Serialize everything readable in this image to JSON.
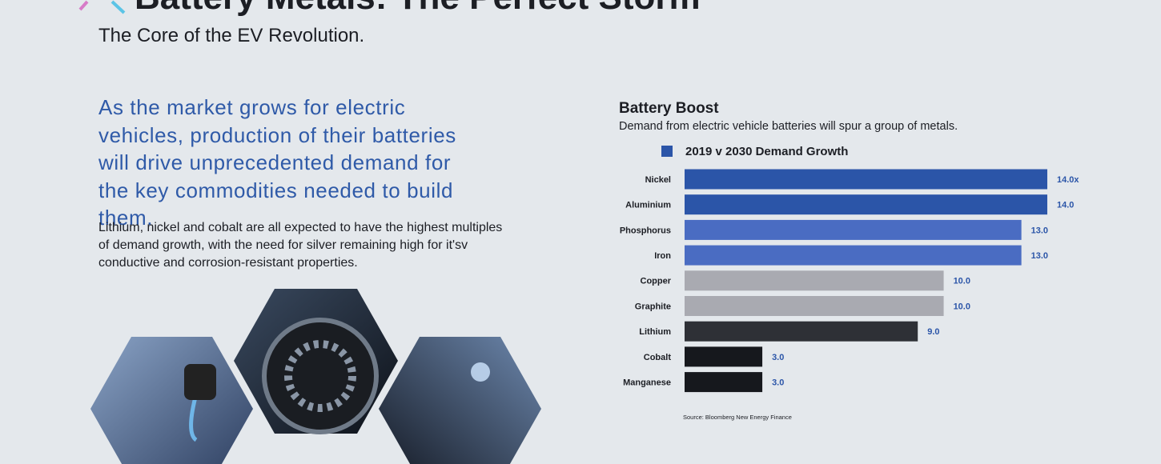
{
  "header": {
    "title": "Battery Metals: The Perfect Storm",
    "subtitle": "The Core of the EV Revolution."
  },
  "intro": {
    "headline": "As the market grows for electric vehicles, production of their batteries will drive unprecedented demand for the key commodities needed to build them.",
    "body": "Lithium, nickel and cobalt are all expected to have the highest multiples of demand growth, with the need for silver remaining high for it'sv conductive and corrosion-resistant properties."
  },
  "chart_data": {
    "type": "bar",
    "orientation": "horizontal",
    "title": "Battery Boost",
    "subtitle": "Demand from electric vehicle batteries will spur a group of metals.",
    "categories": [
      "Nickel",
      "Aluminium",
      "Phosphorus",
      "Iron",
      "Copper",
      "Graphite",
      "Lithium",
      "Cobalt",
      "Manganese"
    ],
    "series": [
      {
        "name": "2019 v 2030 Demand Growth",
        "color": "#2b55a8",
        "values": [
          14,
          14,
          13,
          13,
          10,
          10,
          9,
          3,
          3
        ],
        "value_labels": [
          "14.0x",
          "14.0",
          "13.0",
          "13.0",
          "10.0",
          "10.0",
          "9.0",
          "3.0",
          "3.0"
        ],
        "colors": [
          "#2b55a8",
          "#2b55a8",
          "#4a6cc2",
          "#4a6cc2",
          "#a9aab1",
          "#a9aab1",
          "#2e3036",
          "#16181d",
          "#16181d"
        ]
      }
    ],
    "xlim": [
      0,
      14
    ],
    "source": "Source: Bloomberg New Energy Finance"
  }
}
